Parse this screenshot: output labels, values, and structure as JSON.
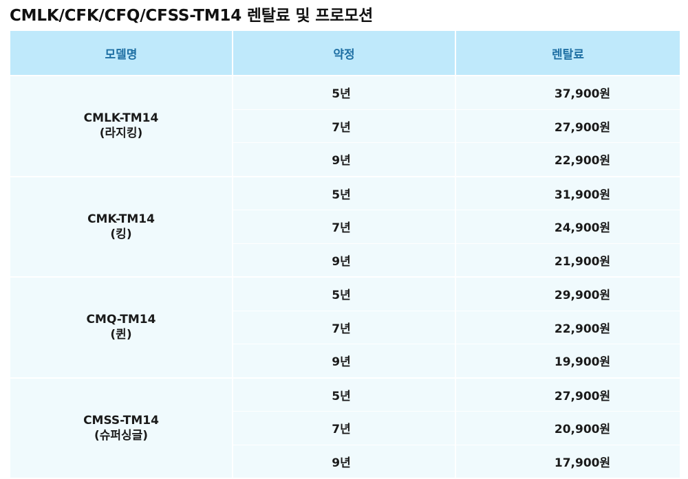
{
  "page": {
    "title": "CMLK/CFK/CFQ/CFSS-TM14 렌탈료 및 프로모션"
  },
  "table": {
    "headers": {
      "model": "모델명",
      "term": "약정",
      "fee": "렌탈료"
    },
    "groups": [
      {
        "model": "CMLK-TM14",
        "sub": "(라지킹)",
        "rows": [
          {
            "term": "5년",
            "fee": "37,900원"
          },
          {
            "term": "7년",
            "fee": "27,900원"
          },
          {
            "term": "9년",
            "fee": "22,900원"
          }
        ]
      },
      {
        "model": "CMK-TM14",
        "sub": "(킹)",
        "rows": [
          {
            "term": "5년",
            "fee": "31,900원"
          },
          {
            "term": "7년",
            "fee": "24,900원"
          },
          {
            "term": "9년",
            "fee": "21,900원"
          }
        ]
      },
      {
        "model": "CMQ-TM14",
        "sub": "(퀸)",
        "rows": [
          {
            "term": "5년",
            "fee": "29,900원"
          },
          {
            "term": "7년",
            "fee": "22,900원"
          },
          {
            "term": "9년",
            "fee": "19,900원"
          }
        ]
      },
      {
        "model": "CMSS-TM14",
        "sub": "(슈퍼싱글)",
        "rows": [
          {
            "term": "5년",
            "fee": "27,900원"
          },
          {
            "term": "7년",
            "fee": "20,900원"
          },
          {
            "term": "9년",
            "fee": "17,900원"
          }
        ]
      }
    ]
  }
}
